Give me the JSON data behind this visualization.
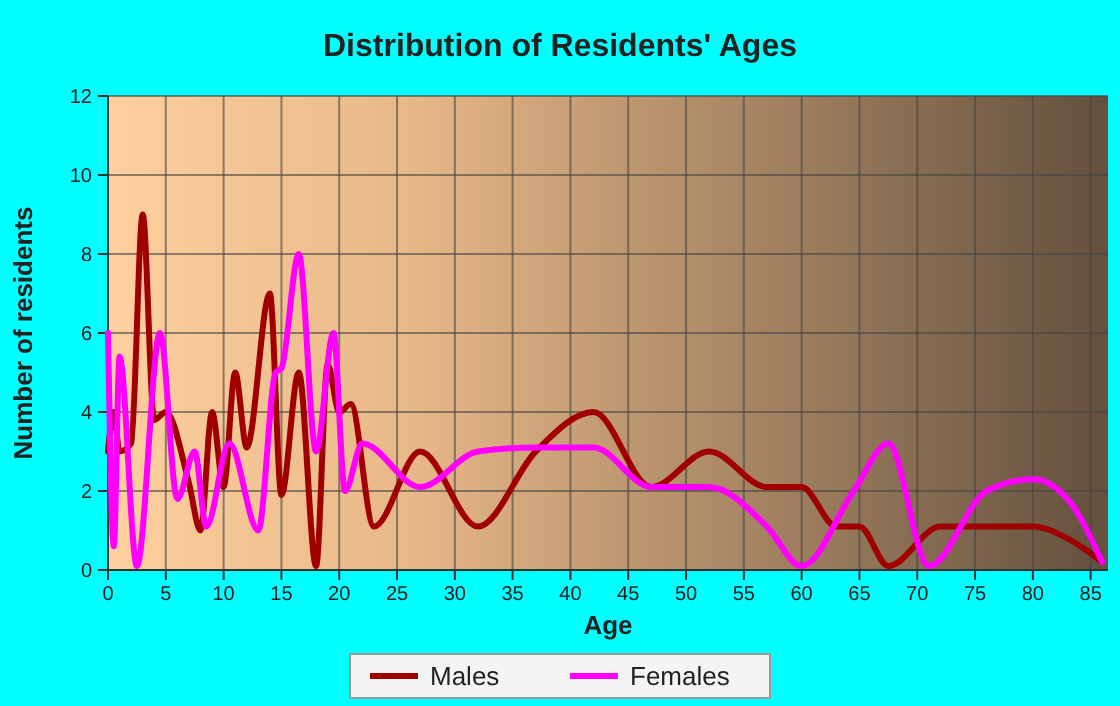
{
  "chart_data": {
    "type": "line",
    "title": "Distribution of Residents' Ages",
    "xlabel": "Age",
    "ylabel": "Number of residents",
    "xlim": [
      0,
      86.5
    ],
    "xticks": [
      0,
      5,
      10,
      15,
      20,
      25,
      30,
      35,
      40,
      45,
      50,
      55,
      60,
      65,
      70,
      75,
      80,
      85
    ],
    "ylim": [
      0,
      12
    ],
    "yticks": [
      0,
      2,
      4,
      6,
      8,
      10,
      12
    ],
    "grid": true,
    "legend": "bottom",
    "marker": "none",
    "line_style": "solid",
    "series": [
      {
        "name": "Males",
        "color": "#a00000",
        "x": [
          0,
          0.5,
          1,
          2,
          3,
          4,
          5,
          7,
          8,
          9,
          10,
          11,
          12,
          14,
          15,
          16.5,
          18,
          19,
          20,
          21,
          23,
          27,
          32,
          37,
          42,
          47,
          52,
          57,
          60,
          63,
          65,
          67.5,
          72,
          77,
          80,
          83,
          86
        ],
        "values": [
          3,
          4,
          3,
          3.2,
          9,
          3.8,
          4,
          2.2,
          1,
          4,
          2.1,
          5,
          3.1,
          7,
          1.9,
          5,
          0.1,
          5.2,
          4,
          4.2,
          1.1,
          3,
          1.1,
          3,
          4,
          2.1,
          3,
          2.1,
          2.1,
          1.1,
          1.1,
          0.1,
          1.1,
          1.1,
          1.1,
          0.8,
          0.2
        ]
      },
      {
        "name": "Females",
        "color": "#ff00ff",
        "x": [
          0,
          0.5,
          1,
          2.5,
          4.5,
          6,
          7.5,
          8.5,
          10.5,
          13,
          14.5,
          15,
          16.5,
          18,
          19.5,
          20.5,
          22,
          27,
          32,
          37,
          42,
          47,
          52,
          57,
          60,
          64.5,
          67.5,
          71,
          76,
          80,
          83,
          86
        ],
        "values": [
          6,
          0.6,
          5.4,
          0.1,
          6,
          1.8,
          3,
          1.1,
          3.2,
          1,
          5,
          5.1,
          8,
          3,
          6,
          2,
          3.2,
          2.1,
          3,
          3.1,
          3.1,
          2.1,
          2.1,
          1.1,
          0.1,
          2,
          3.2,
          0.1,
          2,
          2.3,
          1.8,
          0.2
        ]
      }
    ]
  }
}
